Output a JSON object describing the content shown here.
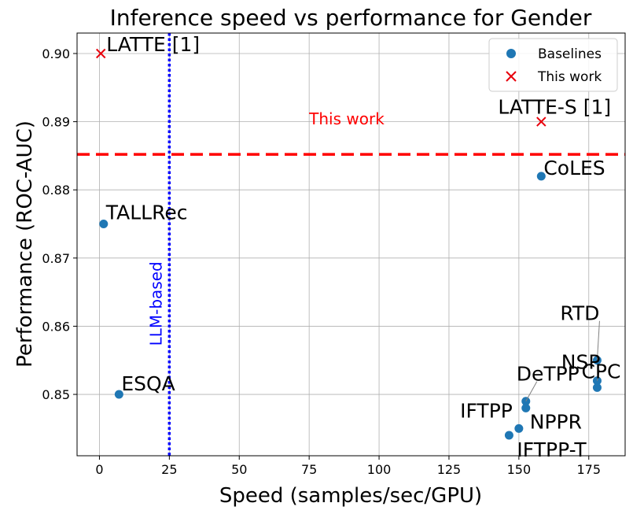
{
  "chart_data": {
    "type": "scatter",
    "title": "Inference speed vs performance for Gender",
    "xlabel": "Speed (samples/sec/GPU)",
    "ylabel": "Performance (ROC-AUC)",
    "xlim": [
      -8,
      188
    ],
    "ylim": [
      0.841,
      0.903
    ],
    "xticks": [
      0,
      25,
      50,
      75,
      100,
      125,
      150,
      175
    ],
    "xtick_labels": [
      "0",
      "25",
      "50",
      "75",
      "100",
      "125",
      "150",
      "175"
    ],
    "yticks": [
      0.85,
      0.86,
      0.87,
      0.88,
      0.89,
      0.9
    ],
    "ytick_labels": [
      "0.85",
      "0.86",
      "0.87",
      "0.88",
      "0.89",
      "0.90"
    ],
    "grid": true,
    "legend_position": "top-right",
    "legend": [
      "Baselines",
      "This work"
    ],
    "colors": {
      "baselines": "#1f77b4",
      "this_work": "#e8000b",
      "llm_line": "#0000ff",
      "threshold_line": "#ff0000"
    },
    "series": [
      {
        "name": "Baselines",
        "marker": "circle",
        "points": [
          {
            "label": "CoLES",
            "x": 158,
            "y": 0.882
          },
          {
            "label": "TALLRec",
            "x": 1.5,
            "y": 0.875
          },
          {
            "label": "ESQA",
            "x": 7,
            "y": 0.85
          },
          {
            "label": "RTD",
            "x": 178,
            "y": 0.855
          },
          {
            "label": "NSP",
            "x": 178,
            "y": 0.852
          },
          {
            "label": "CPC",
            "x": 178,
            "y": 0.851
          },
          {
            "label": "DeTPP",
            "x": 152.5,
            "y": 0.849
          },
          {
            "label": "NPPR",
            "x": 152.5,
            "y": 0.848
          },
          {
            "label": "IFTPP",
            "x": 150,
            "y": 0.845
          },
          {
            "label": "IFTPP-T",
            "x": 146.5,
            "y": 0.844
          }
        ]
      },
      {
        "name": "This work",
        "marker": "x",
        "points": [
          {
            "label": "LATTE [1]",
            "x": 0.5,
            "y": 0.9
          },
          {
            "label": "LATTE-S [1]",
            "x": 158,
            "y": 0.89
          }
        ]
      }
    ],
    "annotations": [
      {
        "type": "vline",
        "x": 25,
        "text": "LLM-based",
        "style": "dotted"
      },
      {
        "type": "hline",
        "y": 0.8852,
        "text": "This work",
        "style": "dashed",
        "text_x": 75
      }
    ]
  }
}
